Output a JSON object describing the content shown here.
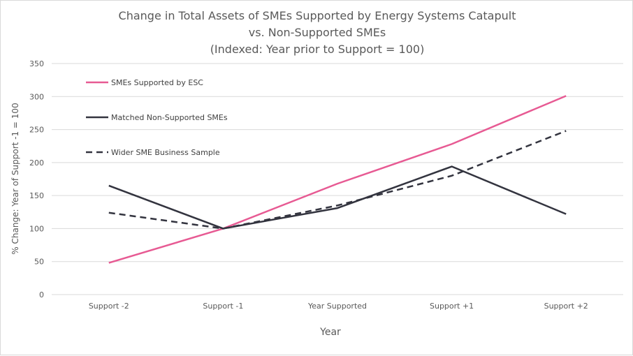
{
  "chart_data": {
    "type": "line",
    "title": [
      "Change in Total Assets of SMEs Supported by Energy Systems Catapult",
      "vs. Non-Supported SMEs",
      "(Indexed: Year prior to Support = 100)"
    ],
    "xlabel": "Year",
    "ylabel": "% Change: Year of Support -1 = 100",
    "categories": [
      "Support -2",
      "Support -1",
      "Year Supported",
      "Support +1",
      "Support +2"
    ],
    "ylim": [
      0,
      350
    ],
    "yticks": [
      0,
      50,
      100,
      150,
      200,
      250,
      300,
      350
    ],
    "grid": true,
    "legend_position": "top-left",
    "series": [
      {
        "name": "SMEs Supported by ESC",
        "values": [
          48,
          100,
          168,
          228,
          301
        ],
        "color": "#e75a93",
        "dash": "solid"
      },
      {
        "name": "Matched Non-Supported SMEs",
        "values": [
          165,
          100,
          131,
          194,
          122
        ],
        "color": "#33343f",
        "dash": "solid"
      },
      {
        "name": "Wider SME Business Sample",
        "values": [
          124,
          100,
          135,
          180,
          248
        ],
        "color": "#33343f",
        "dash": "dashed"
      }
    ]
  }
}
